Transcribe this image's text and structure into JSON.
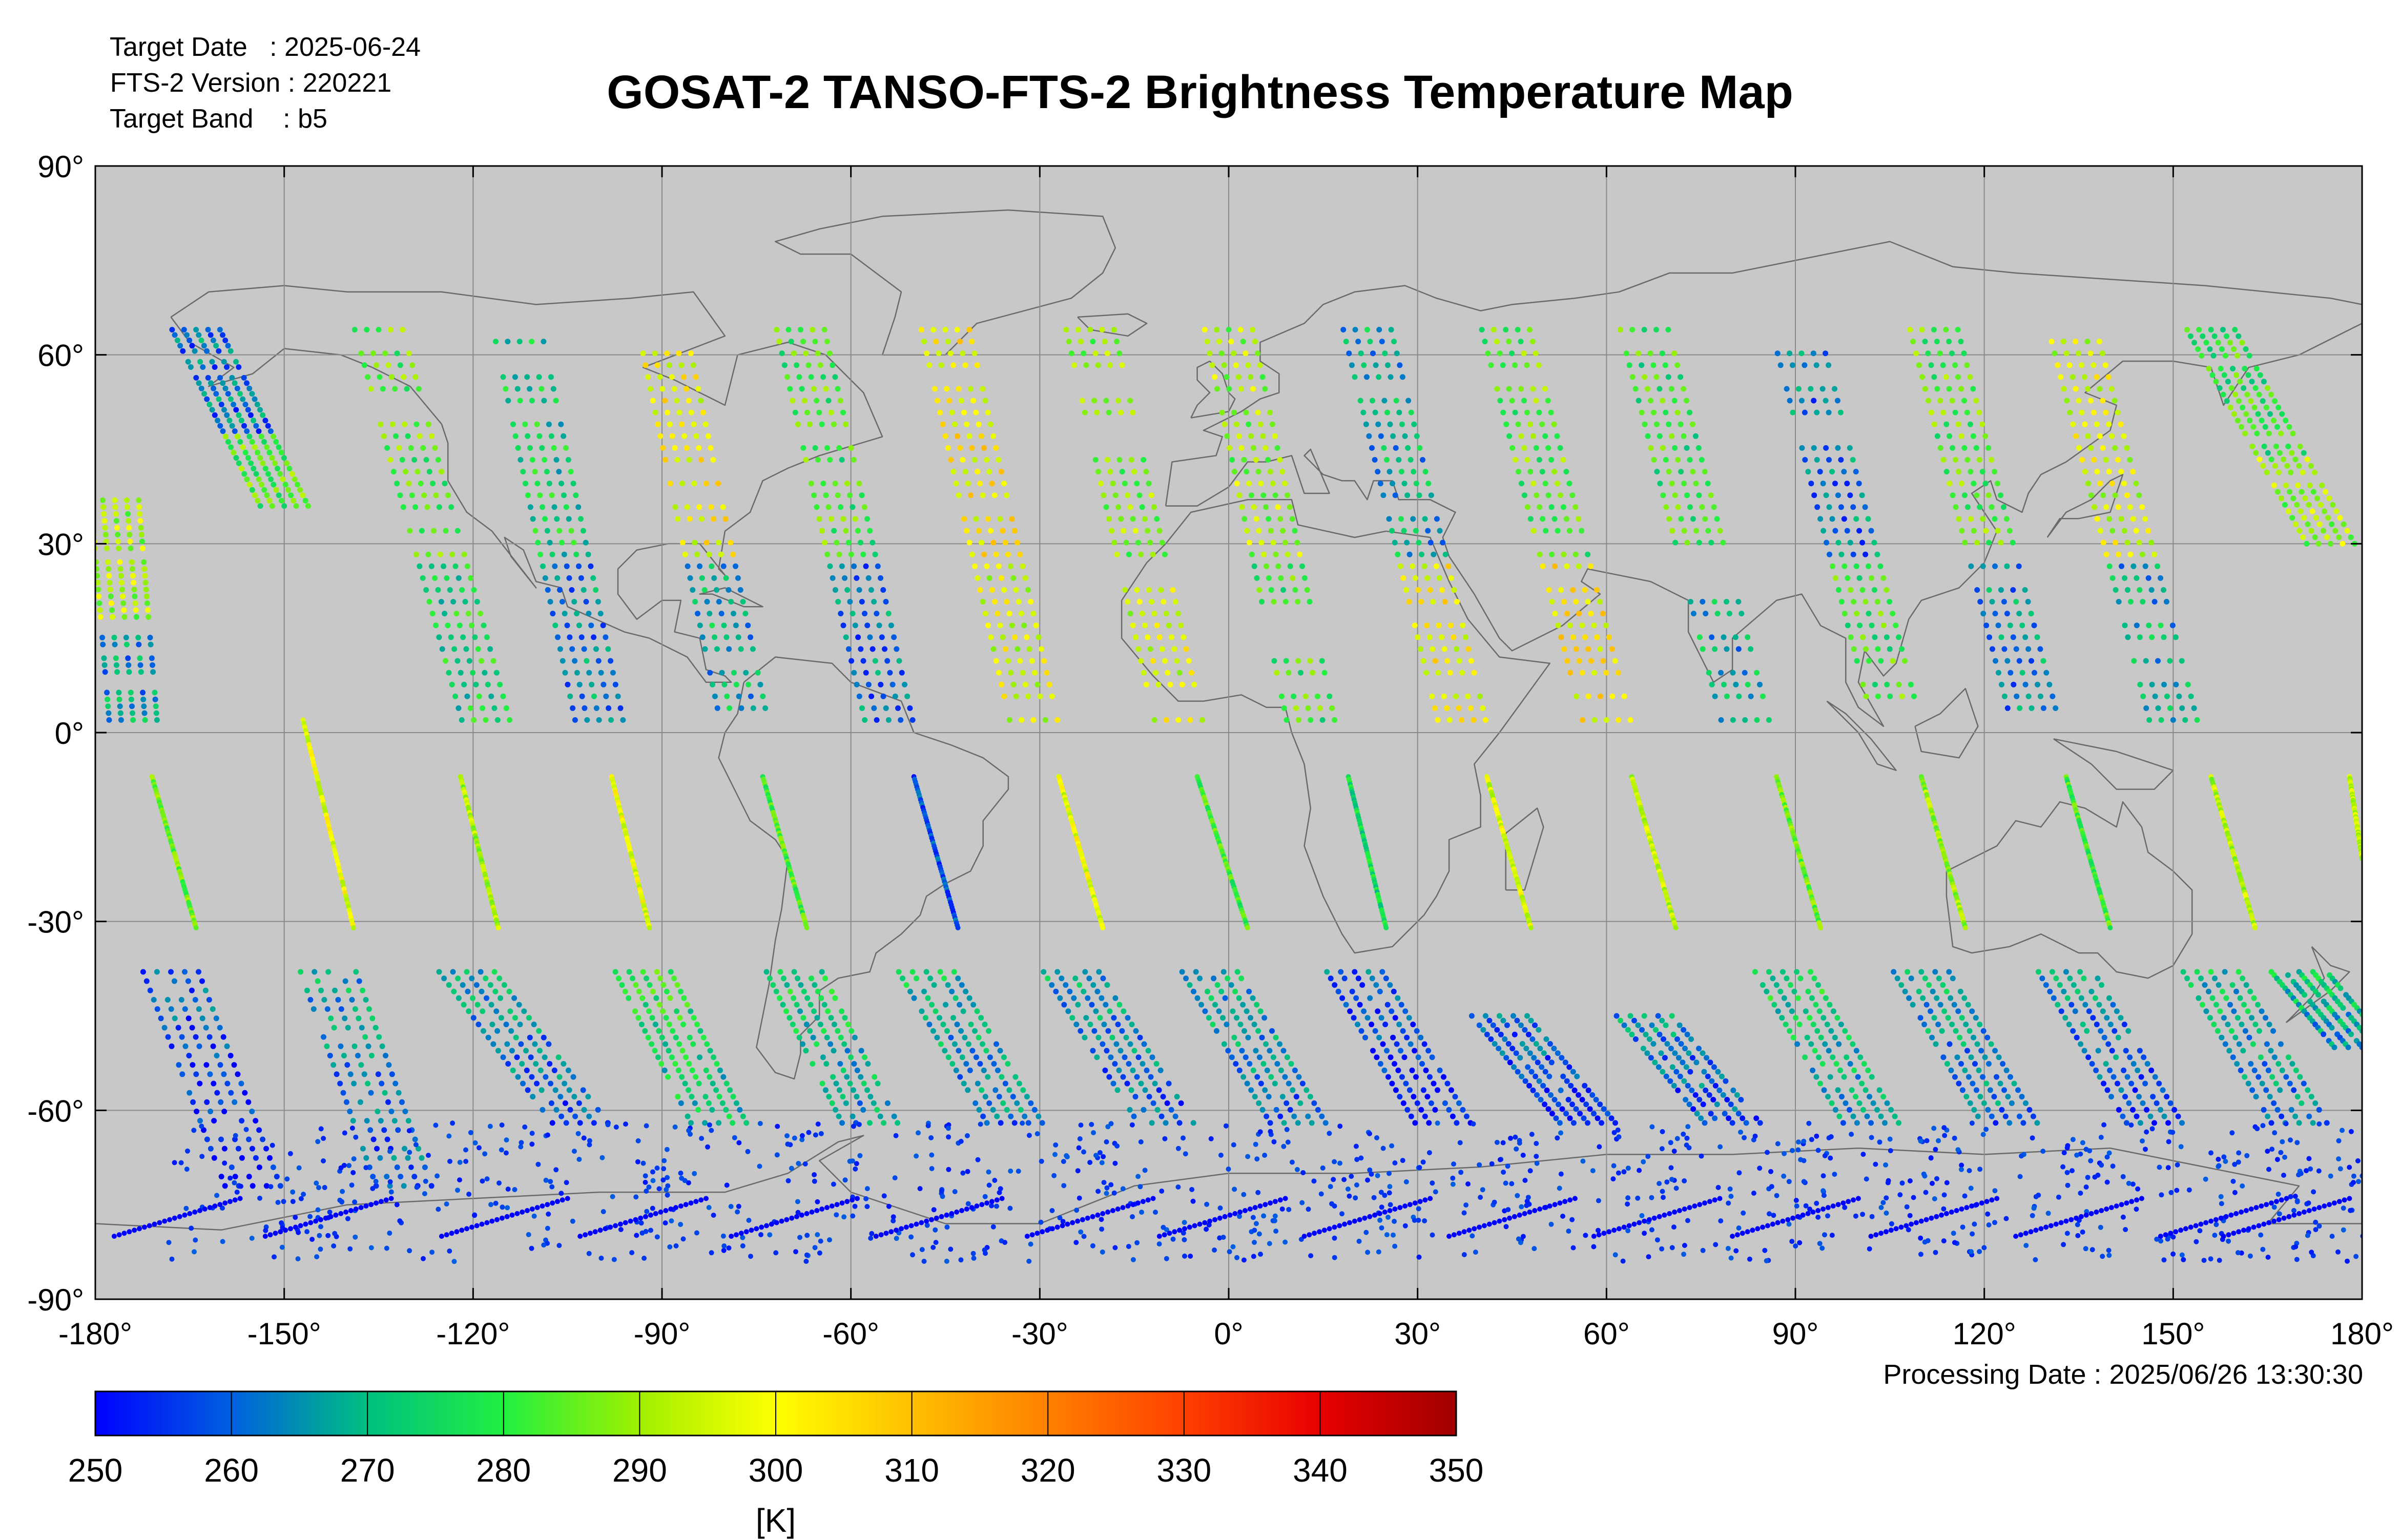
{
  "header": {
    "target_date_label": "Target Date",
    "target_date": "2025-06-24",
    "version_label": "FTS-2 Version",
    "version": "220221",
    "band_label": "Target Band",
    "band": "b5"
  },
  "title": "GOSAT-2 TANSO-FTS-2 Brightness Temperature Map",
  "processing_label": "Processing Date",
  "processing_date": "2025/06/26 13:30:30",
  "colors": {
    "plot_background": "#c8c8c8",
    "grid": "#8a8a8a",
    "coastline": "#6a6a6a",
    "colormap": [
      "#0000ff",
      "#0040e0",
      "#00a0a0",
      "#00e060",
      "#60f020",
      "#c0f000",
      "#ffff00",
      "#ffc000",
      "#ff8000",
      "#ff4000",
      "#e00000",
      "#a00000"
    ]
  },
  "chart_data": {
    "type": "scatter",
    "title": "GOSAT-2 TANSO-FTS-2 Brightness Temperature Map",
    "projection": "equirectangular",
    "xlim": [
      -180,
      180
    ],
    "ylim": [
      -90,
      90
    ],
    "grid": true,
    "x_ticks": [
      "-180°",
      "-150°",
      "-120°",
      "-90°",
      "-60°",
      "-30°",
      "0°",
      "30°",
      "60°",
      "90°",
      "120°",
      "150°",
      "180°"
    ],
    "y_ticks": [
      "90°",
      "60°",
      "30°",
      "0°",
      "-30°",
      "-60°",
      "-90°"
    ],
    "colorbar": {
      "min": 250,
      "max": 350,
      "ticks": [
        "250",
        "260",
        "270",
        "280",
        "290",
        "300",
        "310",
        "320",
        "330",
        "340",
        "350"
      ],
      "unit": "[K]"
    },
    "orbit_tracks": [
      {
        "desc_lon_start": 160,
        "n_seg": [
          [
            -10,
            2.0
          ],
          [
            -20,
            -16
          ],
          [
            -30,
            -29
          ],
          [
            -44,
            -42
          ]
        ],
        "s_seg": [
          [
            -175,
            -161
          ],
          [
            -168,
            -162
          ]
        ]
      }
    ],
    "tracks": [
      {
        "n": [
          [
            -177,
            38
          ],
          [
            -174,
            2
          ]
        ],
        "s": [
          [
            -171,
            -7
          ],
          [
            -164,
            -31
          ]
        ],
        "lo": [
          [
            -168,
            -38
          ],
          [
            -155,
            -72
          ]
        ],
        "t": [
          291,
          266,
          286,
          260
        ]
      },
      {
        "n": [
          [
            -164,
            64
          ],
          [
            -150,
            36
          ]
        ],
        "s": [
          [
            -147,
            2
          ],
          [
            -139,
            -31
          ]
        ],
        "lo": [
          [
            -143,
            -38
          ],
          [
            -131,
            -72
          ]
        ],
        "t": [
          262,
          284,
          298,
          268
        ]
      },
      {
        "n": [
          [
            -135,
            64
          ],
          [
            -118,
            2
          ]
        ],
        "s": [
          [
            -122,
            -7
          ],
          [
            -116,
            -31
          ]
        ],
        "lo": [
          [
            -121,
            -38
          ],
          [
            -103,
            -62
          ]
        ],
        "t": [
          284,
          276,
          291,
          268
        ]
      },
      {
        "n": [
          [
            -113,
            64
          ],
          [
            -100,
            2
          ]
        ],
        "s": [
          [
            -98,
            -7
          ],
          [
            -92,
            -31
          ]
        ],
        "lo": [
          [
            -93,
            -38
          ],
          [
            -81,
            -62
          ]
        ],
        "t": [
          274,
          264,
          298,
          280
        ]
      },
      {
        "n": [
          [
            -90,
            64
          ],
          [
            -77,
            2
          ]
        ],
        "s": [
          [
            -74,
            -7
          ],
          [
            -67,
            -31
          ]
        ],
        "lo": [
          [
            -69,
            -38
          ],
          [
            -57,
            -62
          ]
        ],
        "t": [
          300,
          268,
          283,
          276
        ]
      },
      {
        "n": [
          [
            -68,
            64
          ],
          [
            -54,
            2
          ]
        ],
        "s": [
          [
            -50,
            -7
          ],
          [
            -43,
            -31
          ]
        ],
        "lo": [
          [
            -48,
            -38
          ],
          [
            -34,
            -62
          ]
        ],
        "t": [
          282,
          262,
          258,
          272
        ]
      },
      {
        "n": [
          [
            -45,
            64
          ],
          [
            -31,
            2
          ]
        ],
        "s": [
          [
            -27,
            -7
          ],
          [
            -20,
            -31
          ]
        ],
        "lo": [
          [
            -25,
            -38
          ],
          [
            -10,
            -62
          ]
        ],
        "t": [
          302,
          296,
          298,
          268
        ]
      },
      {
        "n": [
          [
            -22,
            64
          ],
          [
            -8,
            2
          ]
        ],
        "s": [
          [
            -5,
            -7
          ],
          [
            3,
            -31
          ]
        ],
        "lo": [
          [
            -3,
            -38
          ],
          [
            11,
            -62
          ]
        ],
        "t": [
          288,
          296,
          282,
          270
        ]
      },
      {
        "n": [
          [
            0,
            64
          ],
          [
            13,
            2
          ]
        ],
        "s": [
          [
            19,
            -7
          ],
          [
            25,
            -31
          ]
        ],
        "lo": [
          [
            20,
            -38
          ],
          [
            34,
            -62
          ]
        ],
        "t": [
          290,
          282,
          276,
          260
        ]
      },
      {
        "n": [
          [
            22,
            64
          ],
          [
            37,
            2
          ]
        ],
        "s": [
          [
            41,
            -7
          ],
          [
            48,
            -31
          ]
        ],
        "lo": [
          [
            43,
            -45
          ],
          [
            57,
            -62
          ]
        ],
        "t": [
          268,
          300,
          296,
          262
        ]
      },
      {
        "n": [
          [
            44,
            64
          ],
          [
            60,
            2
          ]
        ],
        "s": [
          [
            64,
            -7
          ],
          [
            71,
            -31
          ]
        ],
        "lo": [
          [
            66,
            -45
          ],
          [
            80,
            -62
          ]
        ],
        "t": [
          284,
          302,
          294,
          266
        ]
      },
      {
        "n": [
          [
            66,
            64
          ],
          [
            82,
            2
          ]
        ],
        "s": [
          [
            87,
            -7
          ],
          [
            94,
            -31
          ]
        ],
        "lo": [
          [
            88,
            -38
          ],
          [
            102,
            -62
          ]
        ],
        "t": [
          280,
          268,
          286,
          276
        ]
      },
      {
        "n": [
          [
            90,
            64
          ],
          [
            106,
            2
          ]
        ],
        "s": [
          [
            110,
            -7
          ],
          [
            117,
            -31
          ]
        ],
        "lo": [
          [
            110,
            -38
          ],
          [
            124,
            -62
          ]
        ],
        "t": [
          262,
          282,
          290,
          270
        ]
      },
      {
        "n": [
          [
            112,
            64
          ],
          [
            128,
            2
          ]
        ],
        "s": [
          [
            133,
            -7
          ],
          [
            140,
            -31
          ]
        ],
        "lo": [
          [
            133,
            -38
          ],
          [
            147,
            -62
          ]
        ],
        "t": [
          284,
          264,
          282,
          266
        ]
      },
      {
        "n": [
          [
            134,
            64
          ],
          [
            150,
            2
          ]
        ],
        "s": [
          [
            156,
            -7
          ],
          [
            163,
            -31
          ]
        ],
        "lo": [
          [
            156,
            -38
          ],
          [
            170,
            -62
          ]
        ],
        "t": [
          296,
          268,
          292,
          272
        ]
      },
      {
        "n": [
          [
            156,
            64
          ],
          [
            175,
            30
          ]
        ],
        "s": [
          [
            178,
            -7
          ],
          [
            180,
            -20
          ]
        ],
        "lo": [
          [
            170,
            -38
          ],
          [
            180,
            -50
          ]
        ],
        "t": [
          280,
          290,
          294,
          274
        ]
      }
    ]
  }
}
